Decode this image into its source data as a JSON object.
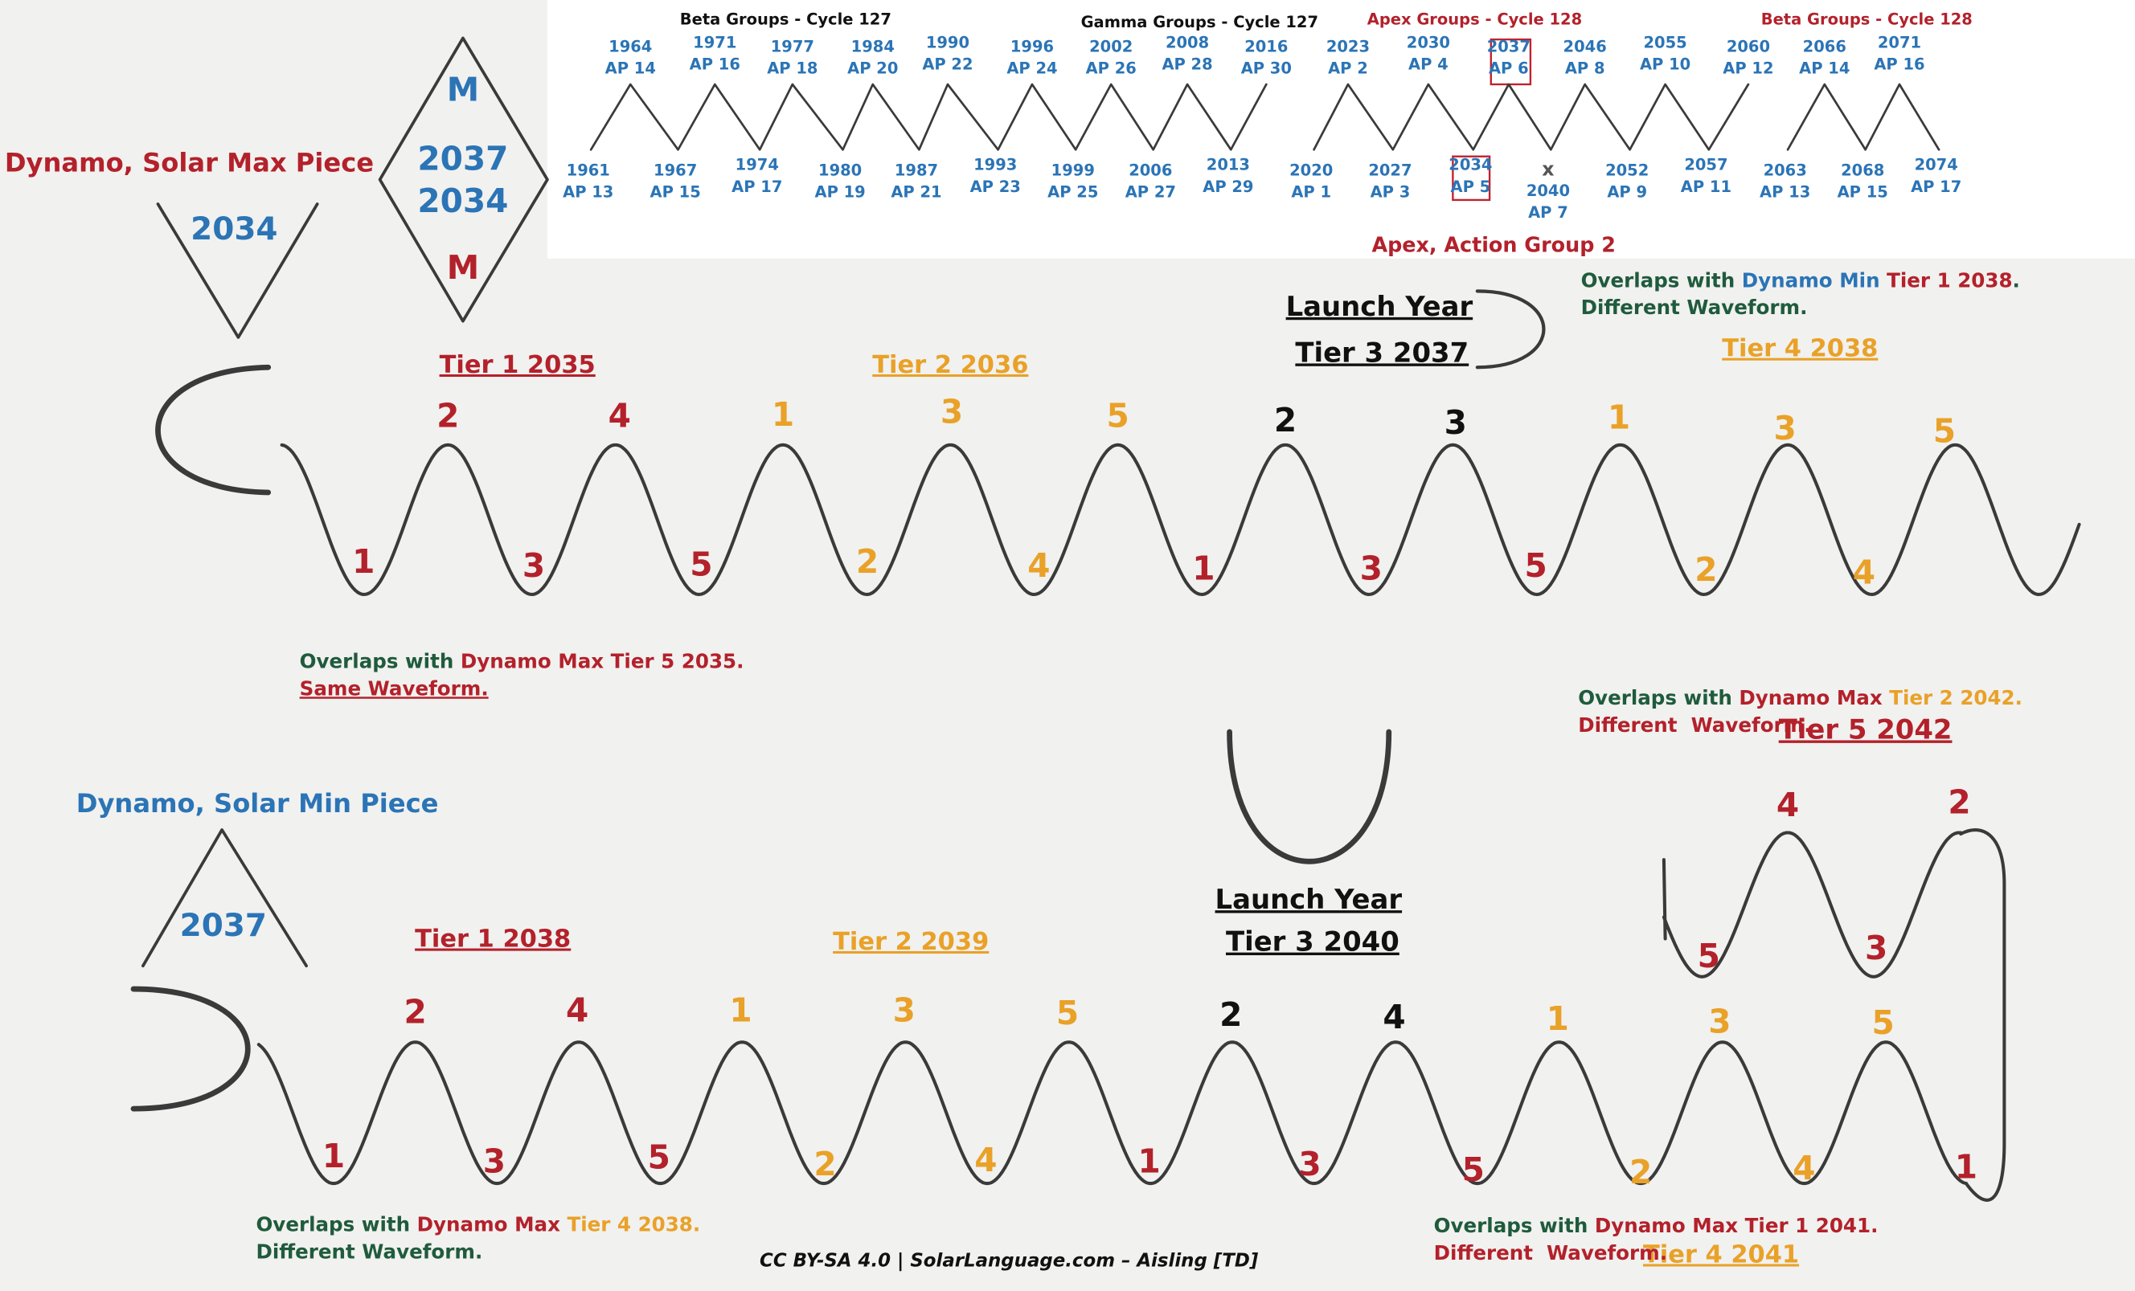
{
  "timeline": {
    "groups": [
      "Beta Groups - Cycle 127",
      "Gamma Groups - Cycle 127",
      "Apex Groups - Cycle 128",
      "Beta Groups - Cycle 128"
    ],
    "upper": [
      {
        "year": 1964,
        "ap": "AP 14"
      },
      {
        "year": 1971,
        "ap": "AP 16"
      },
      {
        "year": 1977,
        "ap": "AP 18"
      },
      {
        "year": 1984,
        "ap": "AP 20"
      },
      {
        "year": 1990,
        "ap": "AP 22"
      },
      {
        "year": 1996,
        "ap": "AP 24"
      },
      {
        "year": 2002,
        "ap": "AP 26"
      },
      {
        "year": 2008,
        "ap": "AP 28"
      },
      {
        "year": 2016,
        "ap": "AP 30"
      },
      {
        "year": 2023,
        "ap": "AP 2"
      },
      {
        "year": 2030,
        "ap": "AP 4"
      },
      {
        "year": 2037,
        "ap": "AP 6"
      },
      {
        "year": 2046,
        "ap": "AP 8"
      },
      {
        "year": 2055,
        "ap": "AP 10"
      },
      {
        "year": 2060,
        "ap": "AP 12"
      },
      {
        "year": 2066,
        "ap": "AP 14"
      },
      {
        "year": 2071,
        "ap": "AP 16"
      }
    ],
    "lower": [
      {
        "year": 1961,
        "ap": "AP 13"
      },
      {
        "year": 1967,
        "ap": "AP 15"
      },
      {
        "year": 1974,
        "ap": "AP 17"
      },
      {
        "year": 1980,
        "ap": "AP 19"
      },
      {
        "year": 1987,
        "ap": "AP 21"
      },
      {
        "year": 1993,
        "ap": "AP 23"
      },
      {
        "year": 1999,
        "ap": "AP 25"
      },
      {
        "year": 2006,
        "ap": "AP 27"
      },
      {
        "year": 2013,
        "ap": "AP 29"
      },
      {
        "year": 2020,
        "ap": "AP 1"
      },
      {
        "year": 2027,
        "ap": "AP 3"
      },
      {
        "year": 2034,
        "ap": "AP 5"
      },
      {
        "mark": "x",
        "year": 2040,
        "ap": "AP 7"
      },
      {
        "year": 2052,
        "ap": "AP 9"
      },
      {
        "year": 2057,
        "ap": "AP 11"
      },
      {
        "year": 2063,
        "ap": "AP 13"
      },
      {
        "year": 2068,
        "ap": "AP 15"
      },
      {
        "year": 2074,
        "ap": "AP 17"
      }
    ],
    "caption": "Apex, Action Group 2"
  },
  "max_piece": {
    "title": "Dynamo, Solar Max Piece",
    "v_label": 2034,
    "diamond": [
      "M",
      2037,
      2034,
      "M"
    ],
    "launch": {
      "title": "Launch Year",
      "tier": "Tier 3 2037"
    },
    "tiers": [
      "Tier 1 2035",
      "Tier 2 2036",
      "Tier 4 2038"
    ],
    "peaks": [
      2,
      4,
      1,
      3,
      5,
      2,
      3,
      1,
      3,
      5
    ],
    "troughs": [
      1,
      3,
      5,
      2,
      4,
      1,
      3,
      5,
      2,
      4
    ],
    "notes": [
      {
        "lines": [
          [
            "Overlaps with ",
            "Dynamo Min ",
            "Tier 1 2038",
            "."
          ],
          [
            "Different Waveform."
          ]
        ]
      },
      {
        "lines": [
          [
            "Overlaps with ",
            "Dynamo Max ",
            "Tier 5 2035."
          ],
          [
            "Same Waveform."
          ]
        ]
      }
    ]
  },
  "min_piece": {
    "title": "Dynamo, Solar Min Piece",
    "triangle_label": 2037,
    "launch": {
      "title": "Launch Year",
      "tier": "Tier 3 2040"
    },
    "tiers": [
      "Tier 1 2038",
      "Tier 2 2039",
      "Tier 5 2042",
      "Tier 4 2041"
    ],
    "peaks": [
      2,
      4,
      1,
      3,
      5,
      2,
      4,
      1,
      3,
      5
    ],
    "troughs": [
      1,
      3,
      5,
      2,
      4,
      1,
      3,
      5,
      2,
      4,
      1
    ],
    "extension": {
      "peaks": [
        4,
        2
      ],
      "troughs": [
        5,
        3
      ]
    },
    "notes": [
      {
        "lines": [
          [
            "Overlaps with ",
            "Dynamo Max ",
            "Tier 2 2042."
          ],
          [
            "Different  Waveform."
          ]
        ]
      },
      {
        "lines": [
          [
            "Overlaps with ",
            "Dynamo Max ",
            "Tier 4 2038."
          ],
          [
            "Different Waveform."
          ]
        ]
      },
      {
        "lines": [
          [
            "Overlaps with ",
            "Dynamo Max ",
            "Tier 1 2041."
          ],
          [
            "Different  Waveform."
          ]
        ]
      }
    ]
  },
  "footer": "CC BY-SA 4.0 | SolarLanguage.com – Aisling [TD]"
}
